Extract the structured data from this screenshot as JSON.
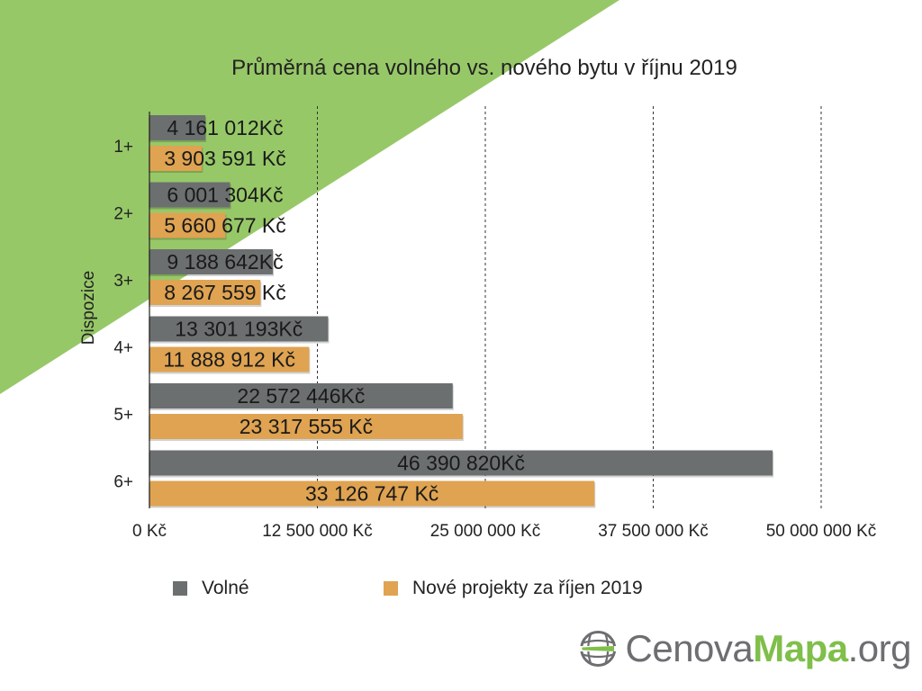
{
  "chart_data": {
    "type": "bar",
    "orientation": "horizontal",
    "title": "Průměrná cena volného vs. nového bytu v říjnu 2019",
    "ylabel": "Dispozice",
    "xlabel": "",
    "categories": [
      "1+",
      "2+",
      "3+",
      "4+",
      "5+",
      "6+"
    ],
    "series": [
      {
        "name": "Volné",
        "color": "#6c6f70",
        "values": [
          4161012,
          6001304,
          9188642,
          13301193,
          22572446,
          46390820
        ],
        "labels": [
          "4 161 012Kč",
          "6 001 304Kč",
          "9 188 642Kč",
          "13 301 193Kč",
          "22 572 446Kč",
          "46 390 820Kč"
        ]
      },
      {
        "name": "Nové projekty za říjen 2019",
        "color": "#dfa351",
        "values": [
          3903591,
          5660677,
          8267559,
          11888912,
          23317555,
          33126747
        ],
        "labels": [
          "3 903 591 Kč",
          "5 660 677 Kč",
          "8 267 559 Kč",
          "11 888 912 Kč",
          "23 317 555 Kč",
          "33 126 747 Kč"
        ]
      }
    ],
    "xlim": [
      0,
      50000000
    ],
    "xticks": [
      0,
      12500000,
      25000000,
      37500000,
      50000000
    ],
    "xtick_labels": [
      "0 Kč",
      "12 500 000 Kč",
      "25 000 000 Kč",
      "37 500 000 Kč",
      "50 000 000 Kč"
    ],
    "grid": "vertical-dashed",
    "legend_position": "bottom"
  },
  "logo": {
    "part1": "Cenova",
    "part2": "Mapa",
    "part3": ".org"
  },
  "colors": {
    "background_accent": "#97c868"
  }
}
